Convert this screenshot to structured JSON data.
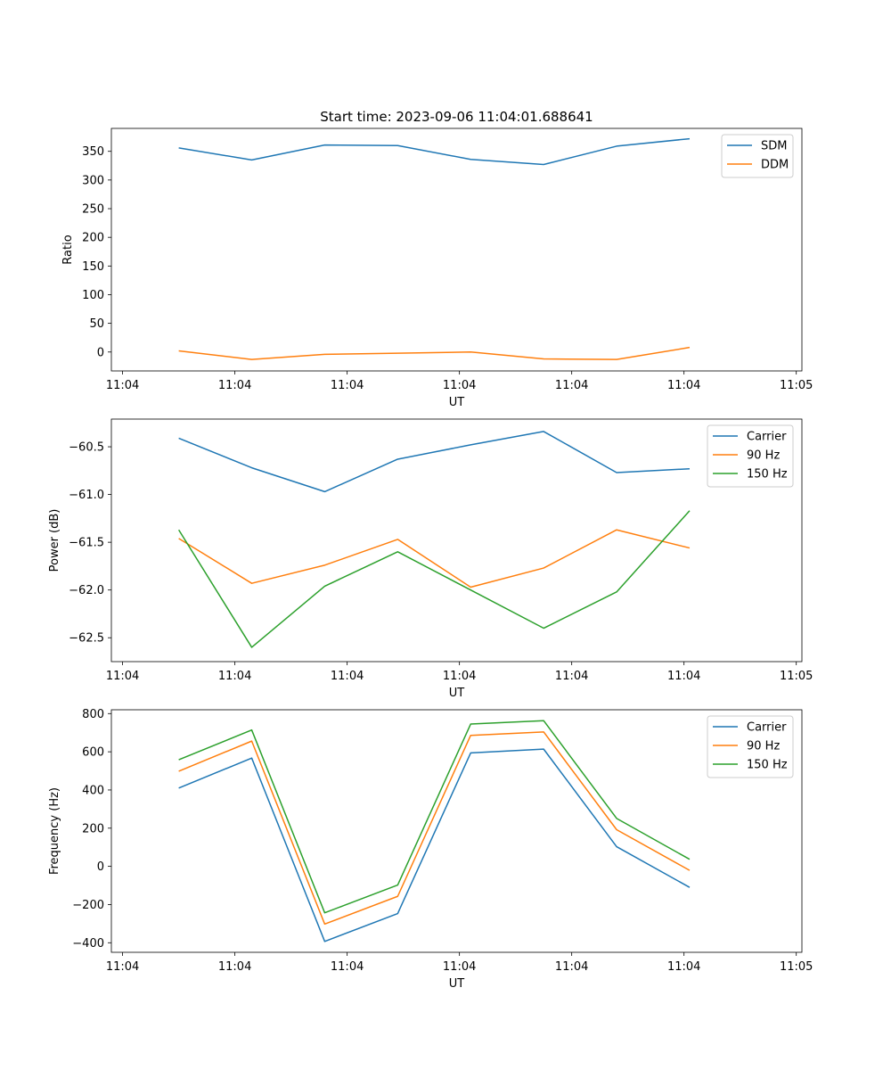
{
  "figure_title": "Start time: 2023-09-06 11:04:01.688641",
  "colors": {
    "blue": "#1f77b4",
    "orange": "#ff7f0e",
    "green": "#2ca02c"
  },
  "chart_data": [
    {
      "type": "line",
      "title": "Start time: 2023-09-06 11:04:01.688641",
      "xlabel": "UT",
      "ylabel": "Ratio",
      "x": [
        0.5,
        1.15,
        1.8,
        2.45,
        3.1,
        3.75,
        4.4,
        5.05
      ],
      "xlim": [
        -0.1,
        6.05
      ],
      "xticks": [
        0,
        1,
        2,
        3,
        4,
        5,
        6
      ],
      "xtick_labels": [
        "11:04",
        "11:04",
        "11:04",
        "11:04",
        "11:04",
        "11:04",
        "11:05"
      ],
      "ylim": [
        -33,
        390
      ],
      "yticks": [
        0,
        50,
        100,
        150,
        200,
        250,
        300,
        350
      ],
      "ytick_labels": [
        "0",
        "50",
        "100",
        "150",
        "200",
        "250",
        "300",
        "350"
      ],
      "legend_position": "top-right",
      "series": [
        {
          "name": "SDM",
          "color": "#1f77b4",
          "values": [
            356,
            335,
            361,
            360,
            336,
            327,
            359,
            372
          ]
        },
        {
          "name": "DDM",
          "color": "#ff7f0e",
          "values": [
            2,
            -13,
            -4,
            -2,
            0,
            -12,
            -13,
            8
          ]
        }
      ]
    },
    {
      "type": "line",
      "title": "",
      "xlabel": "UT",
      "ylabel": "Power (dB)",
      "x": [
        0.5,
        1.15,
        1.8,
        2.45,
        3.1,
        3.75,
        4.4,
        5.05
      ],
      "xlim": [
        -0.1,
        6.05
      ],
      "xticks": [
        0,
        1,
        2,
        3,
        4,
        5,
        6
      ],
      "xtick_labels": [
        "11:04",
        "11:04",
        "11:04",
        "11:04",
        "11:04",
        "11:04",
        "11:05"
      ],
      "ylim": [
        -62.75,
        -60.21
      ],
      "yticks": [
        -62.5,
        -62.0,
        -61.5,
        -61.0,
        -60.5
      ],
      "ytick_labels": [
        "−62.5",
        "−62.0",
        "−61.5",
        "−61.0",
        "−60.5"
      ],
      "legend_position": "top-right",
      "series": [
        {
          "name": "Carrier",
          "color": "#1f77b4",
          "values": [
            -60.41,
            -60.72,
            -60.97,
            -60.63,
            -60.48,
            -60.34,
            -60.77,
            -60.73
          ]
        },
        {
          "name": "90 Hz",
          "color": "#ff7f0e",
          "values": [
            -61.46,
            -61.93,
            -61.74,
            -61.47,
            -61.97,
            -61.77,
            -61.37,
            -61.56
          ]
        },
        {
          "name": "150 Hz",
          "color": "#2ca02c",
          "values": [
            -61.37,
            -62.6,
            -61.96,
            -61.6,
            -62.0,
            -62.4,
            -62.02,
            -61.17
          ]
        }
      ]
    },
    {
      "type": "line",
      "title": "",
      "xlabel": "UT",
      "ylabel": "Frequency (Hz)",
      "x": [
        0.5,
        1.15,
        1.8,
        2.45,
        3.1,
        3.75,
        4.4,
        5.05
      ],
      "xlim": [
        -0.1,
        6.05
      ],
      "xticks": [
        0,
        1,
        2,
        3,
        4,
        5,
        6
      ],
      "xtick_labels": [
        "11:04",
        "11:04",
        "11:04",
        "11:04",
        "11:04",
        "11:04",
        "11:05"
      ],
      "ylim": [
        -450,
        820
      ],
      "yticks": [
        -400,
        -200,
        0,
        200,
        400,
        600,
        800
      ],
      "ytick_labels": [
        "−400",
        "−200",
        "0",
        "200",
        "400",
        "600",
        "800"
      ],
      "legend_position": "top-right",
      "series": [
        {
          "name": "Carrier",
          "color": "#1f77b4",
          "values": [
            410,
            567,
            -393,
            -247,
            594,
            614,
            103,
            -110
          ]
        },
        {
          "name": "90 Hz",
          "color": "#ff7f0e",
          "values": [
            498,
            656,
            -302,
            -157,
            686,
            704,
            192,
            -21
          ]
        },
        {
          "name": "150 Hz",
          "color": "#2ca02c",
          "values": [
            558,
            714,
            -243,
            -98,
            745,
            763,
            251,
            37
          ]
        }
      ]
    }
  ]
}
